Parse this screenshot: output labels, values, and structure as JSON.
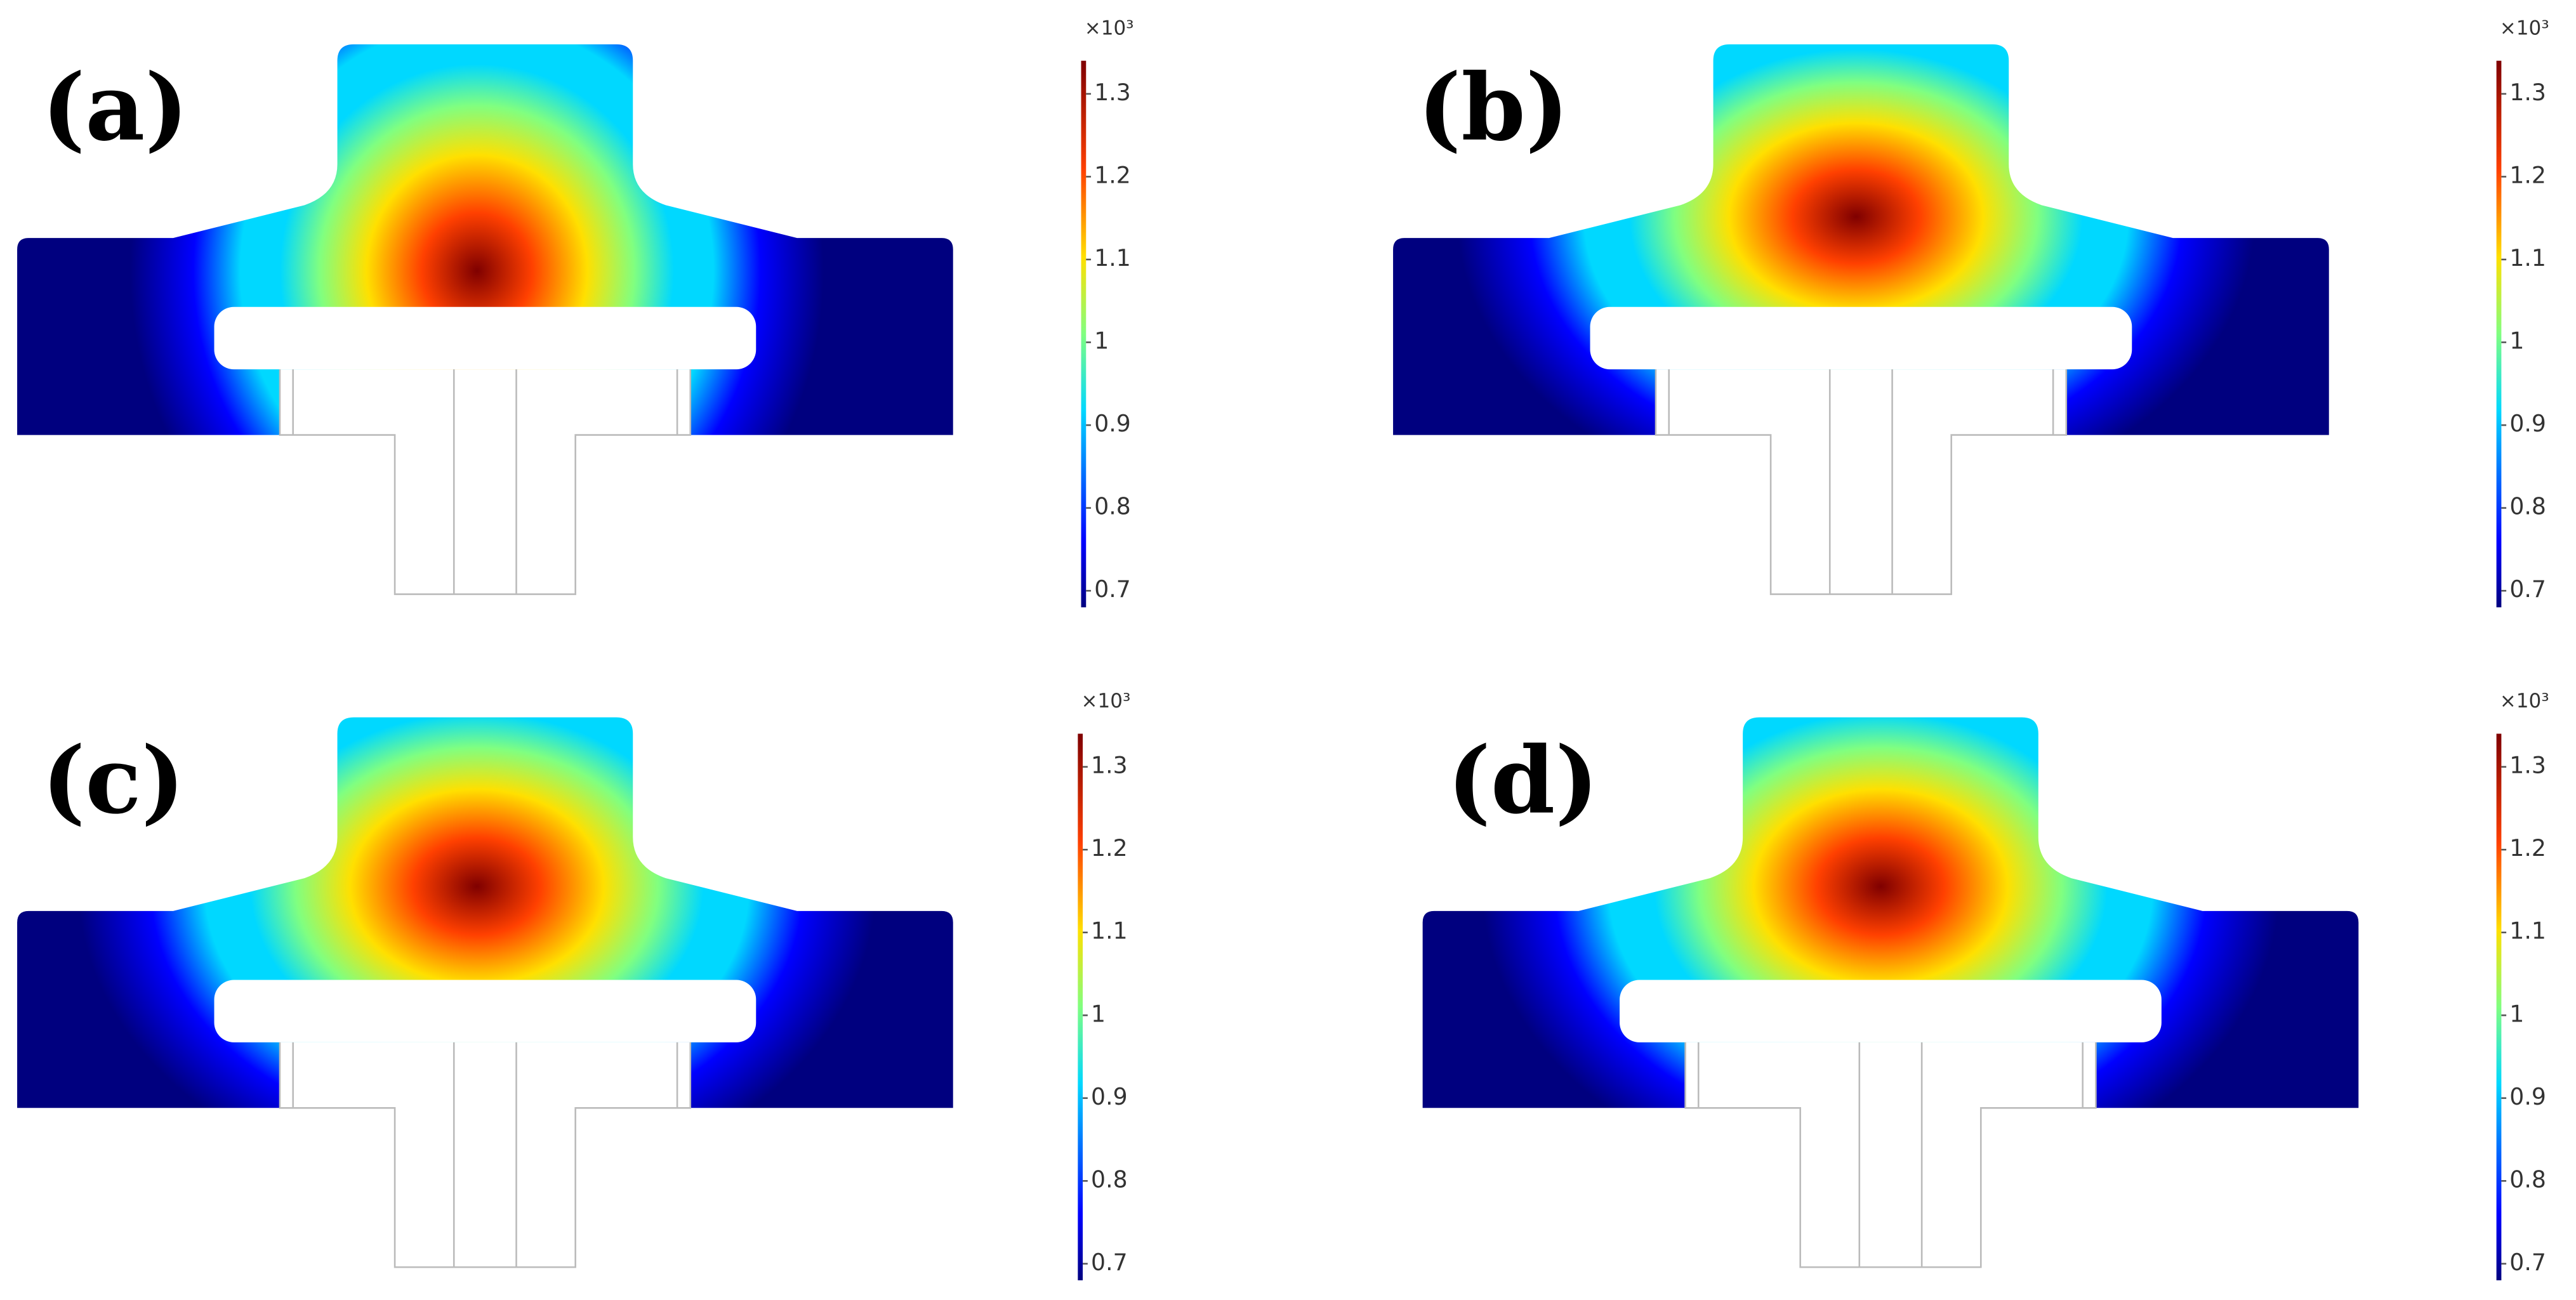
{
  "chart_data": [
    {
      "type": "field",
      "label": "(a)",
      "colormap": "jet",
      "exponent_label": "×10³",
      "zlim": [
        0.68,
        1.34
      ],
      "zticks": [
        0.7,
        0.8,
        0.9,
        1,
        1.1,
        1.2,
        1.3
      ]
    },
    {
      "type": "field",
      "label": "(b)",
      "colormap": "jet",
      "exponent_label": "×10³",
      "zlim": [
        0.68,
        1.34
      ],
      "zticks": [
        0.7,
        0.8,
        0.9,
        1,
        1.1,
        1.2,
        1.3
      ]
    },
    {
      "type": "field",
      "label": "(c)",
      "colormap": "jet",
      "exponent_label": "×10³",
      "zlim": [
        0.68,
        1.34
      ],
      "zticks": [
        0.7,
        0.8,
        0.9,
        1,
        1.1,
        1.2,
        1.3
      ]
    },
    {
      "type": "field",
      "label": "(d)",
      "colormap": "jet",
      "exponent_label": "×10³",
      "zlim": [
        0.68,
        1.34
      ],
      "zticks": [
        0.7,
        0.8,
        0.9,
        1,
        1.1,
        1.2,
        1.3
      ]
    }
  ]
}
